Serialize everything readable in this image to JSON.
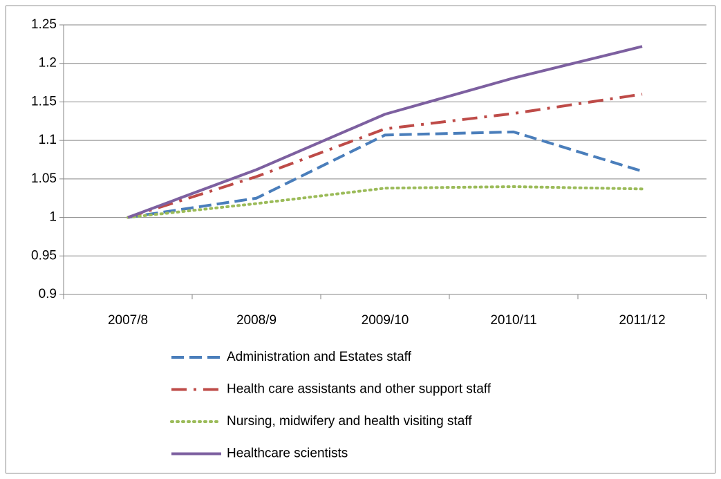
{
  "chart_data": {
    "type": "line",
    "categories": [
      "2007/8",
      "2008/9",
      "2009/10",
      "2010/11",
      "2011/12"
    ],
    "series": [
      {
        "name": "Administration and Estates staff",
        "color": "#4a7ebb",
        "values": [
          1,
          1.025,
          1.107,
          1.111,
          1.06
        ]
      },
      {
        "name": "Health care assistants and other support staff",
        "color": "#be4b48",
        "values": [
          1,
          1.053,
          1.115,
          1.135,
          1.16
        ]
      },
      {
        "name": "Nursing, midwifery and health visiting staff",
        "color": "#9bbb59",
        "values": [
          1,
          1.018,
          1.038,
          1.04,
          1.037
        ]
      },
      {
        "name": "Healthcare scientists",
        "color": "#7d60a0",
        "values": [
          1,
          1.062,
          1.134,
          1.181,
          1.222
        ]
      }
    ],
    "ylim": [
      0.9,
      1.25
    ],
    "yticks": [
      0.9,
      0.95,
      1,
      1.05,
      1.1,
      1.15,
      1.2,
      1.25
    ],
    "grid": true,
    "legend": "bottom"
  }
}
